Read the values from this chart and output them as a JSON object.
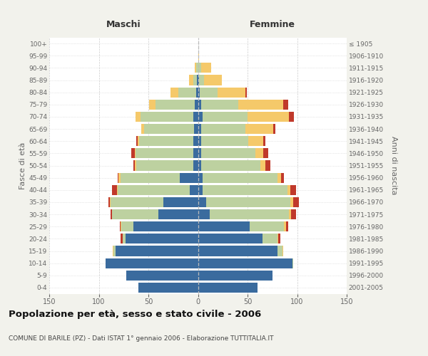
{
  "age_groups": [
    "0-4",
    "5-9",
    "10-14",
    "15-19",
    "20-24",
    "25-29",
    "30-34",
    "35-39",
    "40-44",
    "45-49",
    "50-54",
    "55-59",
    "60-64",
    "65-69",
    "70-74",
    "75-79",
    "80-84",
    "85-89",
    "90-94",
    "95-99",
    "100+"
  ],
  "birth_years": [
    "2001-2005",
    "1996-2000",
    "1991-1995",
    "1986-1990",
    "1981-1985",
    "1976-1980",
    "1971-1975",
    "1966-1970",
    "1961-1965",
    "1956-1960",
    "1951-1955",
    "1946-1950",
    "1941-1945",
    "1936-1940",
    "1931-1935",
    "1926-1930",
    "1921-1925",
    "1916-1920",
    "1911-1915",
    "1906-1910",
    "≤ 1905"
  ],
  "maschi": {
    "celibi": [
      60,
      72,
      93,
      83,
      73,
      65,
      40,
      35,
      8,
      18,
      5,
      5,
      5,
      4,
      5,
      3,
      2,
      1,
      0,
      0,
      0
    ],
    "coniugati": [
      0,
      0,
      0,
      2,
      3,
      12,
      47,
      53,
      73,
      60,
      57,
      58,
      54,
      50,
      53,
      40,
      18,
      4,
      2,
      0,
      0
    ],
    "vedovi": [
      0,
      0,
      0,
      1,
      0,
      1,
      0,
      1,
      1,
      2,
      2,
      1,
      2,
      3,
      5,
      6,
      8,
      4,
      1,
      0,
      0
    ],
    "divorziati": [
      0,
      0,
      0,
      0,
      2,
      1,
      1,
      1,
      5,
      1,
      1,
      3,
      1,
      0,
      0,
      0,
      0,
      0,
      0,
      0,
      0
    ]
  },
  "femmine": {
    "nubili": [
      60,
      75,
      95,
      80,
      65,
      52,
      12,
      8,
      5,
      5,
      3,
      3,
      3,
      3,
      5,
      3,
      2,
      1,
      0,
      0,
      0
    ],
    "coniugate": [
      0,
      0,
      1,
      5,
      15,
      35,
      80,
      85,
      85,
      75,
      60,
      55,
      48,
      45,
      45,
      38,
      18,
      5,
      3,
      0,
      0
    ],
    "vedove": [
      0,
      0,
      0,
      1,
      1,
      2,
      2,
      3,
      3,
      4,
      5,
      8,
      15,
      28,
      42,
      45,
      28,
      18,
      10,
      1,
      0
    ],
    "divorziate": [
      0,
      0,
      0,
      0,
      2,
      2,
      5,
      6,
      6,
      3,
      5,
      5,
      2,
      2,
      5,
      5,
      1,
      0,
      0,
      0,
      0
    ]
  },
  "colors": {
    "celibi_nubili": "#3a6b9e",
    "coniugati": "#bdd1a0",
    "vedovi": "#f5c96a",
    "divorziati": "#c0392b"
  },
  "xlim": 150,
  "title": "Popolazione per età, sesso e stato civile - 2006",
  "subtitle": "COMUNE DI BARILE (PZ) - Dati ISTAT 1° gennaio 2006 - Elaborazione TUTTITALIA.IT",
  "xlabel_left": "Maschi",
  "xlabel_right": "Femmine",
  "ylabel_left": "Fasce di età",
  "ylabel_right": "Anni di nascita",
  "bg_color": "#f2f2ec",
  "plot_bg": "#ffffff",
  "xtick_vals": [
    -150,
    -100,
    -50,
    0,
    50,
    100,
    150
  ],
  "xtick_labels": [
    "150",
    "100",
    "50",
    "0",
    "50",
    "100",
    "150"
  ]
}
